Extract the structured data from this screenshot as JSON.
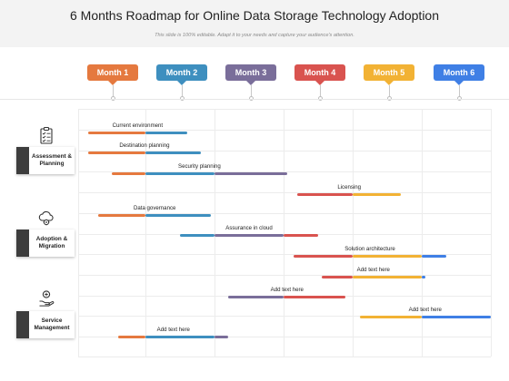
{
  "header": {
    "title": "6 Months Roadmap for Online Data Storage Technology Adoption",
    "subtitle": "This slide is 100% editable. Adapt it to your needs and capture your audience's attention."
  },
  "colors": {
    "orange": "#E5793F",
    "blue": "#3E8FBF",
    "purple": "#7A6E9A",
    "red": "#D9534F",
    "yellow": "#F2B234",
    "brightblue": "#3F7FE5"
  },
  "months": [
    {
      "label": "Month 1",
      "color": "#E5793F"
    },
    {
      "label": "Month 2",
      "color": "#3E8FBF"
    },
    {
      "label": "Month 3",
      "color": "#7A6E9A"
    },
    {
      "label": "Month 4",
      "color": "#D9534F"
    },
    {
      "label": "Month 5",
      "color": "#F2B234"
    },
    {
      "label": "Month 6",
      "color": "#3F7FE5"
    }
  ],
  "categories": [
    {
      "label": "Assessment & Planning",
      "icon": "clipboard-icon"
    },
    {
      "label": "Adoption & Migration",
      "icon": "cloud-gear-icon"
    },
    {
      "label": "Service Management",
      "icon": "service-hand-icon"
    }
  ],
  "tasks": [
    {
      "label": "Current environment",
      "start": 0.15,
      "end": 1.6,
      "segments": [
        {
          "end": 1.0,
          "color": "#E5793F"
        },
        {
          "end": 1.6,
          "color": "#3E8FBF"
        }
      ]
    },
    {
      "label": "Destination planning",
      "start": 0.15,
      "end": 1.8,
      "segments": [
        {
          "end": 1.0,
          "color": "#E5793F"
        },
        {
          "end": 1.8,
          "color": "#3E8FBF"
        }
      ]
    },
    {
      "label": "Security planning",
      "start": 0.5,
      "end": 3.05,
      "segments": [
        {
          "end": 1.0,
          "color": "#E5793F"
        },
        {
          "end": 2.0,
          "color": "#3E8FBF"
        },
        {
          "end": 3.05,
          "color": "#7A6E9A"
        }
      ]
    },
    {
      "label": "Licensing",
      "start": 3.2,
      "end": 4.7,
      "segments": [
        {
          "end": 4.0,
          "color": "#D9534F"
        },
        {
          "end": 4.7,
          "color": "#F2B234"
        }
      ]
    },
    {
      "label": "Data governance",
      "start": 0.3,
      "end": 1.95,
      "segments": [
        {
          "end": 1.0,
          "color": "#E5793F"
        },
        {
          "end": 1.95,
          "color": "#3E8FBF"
        }
      ]
    },
    {
      "label": "Assurance in cloud",
      "start": 1.5,
      "end": 3.5,
      "segments": [
        {
          "end": 2.0,
          "color": "#3E8FBF"
        },
        {
          "end": 3.0,
          "color": "#7A6E9A"
        },
        {
          "end": 3.5,
          "color": "#D9534F"
        }
      ]
    },
    {
      "label": "Solution architecture",
      "start": 3.15,
      "end": 5.35,
      "segments": [
        {
          "end": 4.0,
          "color": "#D9534F"
        },
        {
          "end": 5.0,
          "color": "#F2B234"
        },
        {
          "end": 5.35,
          "color": "#3F7FE5"
        }
      ]
    },
    {
      "label": "Add text here",
      "start": 3.55,
      "end": 5.05,
      "segments": [
        {
          "end": 4.0,
          "color": "#D9534F"
        },
        {
          "end": 5.0,
          "color": "#F2B234"
        },
        {
          "end": 5.05,
          "color": "#3F7FE5"
        }
      ]
    },
    {
      "label": "Add text here",
      "start": 2.2,
      "end": 3.9,
      "segments": [
        {
          "end": 3.0,
          "color": "#7A6E9A"
        },
        {
          "end": 3.9,
          "color": "#D9534F"
        }
      ]
    },
    {
      "label": "Add text here",
      "start": 4.1,
      "end": 6.0,
      "segments": [
        {
          "end": 5.0,
          "color": "#F2B234"
        },
        {
          "end": 6.0,
          "color": "#3F7FE5"
        }
      ]
    },
    {
      "label": "Add text here",
      "start": 0.6,
      "end": 2.2,
      "segments": [
        {
          "end": 1.0,
          "color": "#E5793F"
        },
        {
          "end": 2.0,
          "color": "#3E8FBF"
        },
        {
          "end": 2.2,
          "color": "#7A6E9A"
        }
      ]
    }
  ]
}
